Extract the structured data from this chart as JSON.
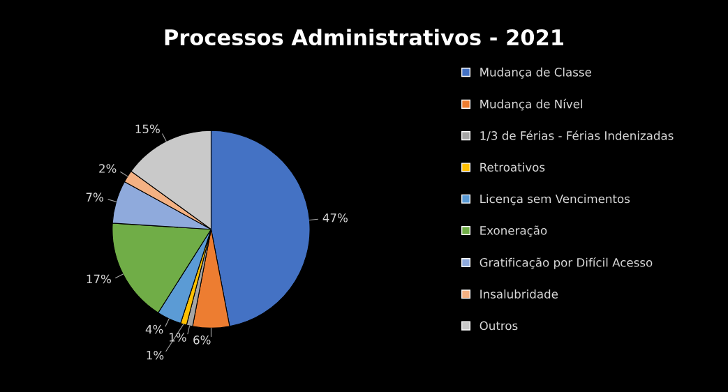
{
  "chart_data": {
    "type": "pie",
    "title": "Processos Administrativos - 2021",
    "categories": [
      "Mudança de Classe",
      "Mudança de Nível",
      "1/3 de Férias - Férias Indenizadas",
      "Retroativos",
      "Licença sem Vencimentos",
      "Exoneração",
      "Gratificação por Difícil Acesso",
      "Insalubridade",
      "Outros"
    ],
    "values": [
      47,
      6,
      1,
      1,
      4,
      17,
      7,
      2,
      15
    ],
    "value_labels": [
      "47%",
      "6%",
      "1%",
      "1%",
      "4%",
      "17%",
      "7%",
      "2%",
      "15%"
    ],
    "colors": [
      "#4472c4",
      "#ed7d31",
      "#a5a5a5",
      "#ffc000",
      "#5b9bd5",
      "#70ad47",
      "#8faadc",
      "#f4b183",
      "#c9c9c9"
    ],
    "legend": "right"
  }
}
